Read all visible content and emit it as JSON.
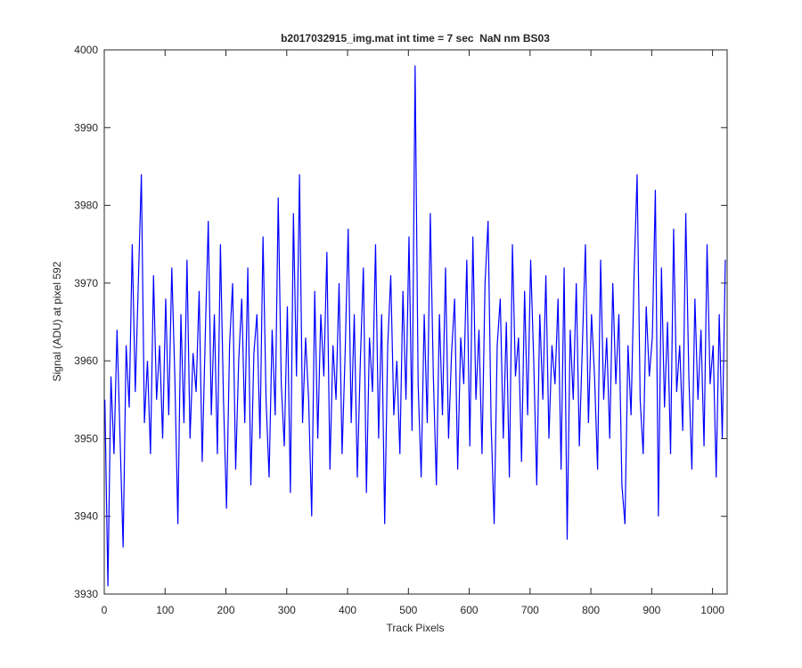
{
  "chart_data": {
    "type": "line",
    "title": "b2017032915_img.mat int time = 7 sec  NaN nm BS03",
    "x_label": "Track Pixels",
    "y_label": "Signal (ADU) at pixel 592",
    "xlim": [
      0,
      1024
    ],
    "xticks": [
      0,
      100,
      200,
      300,
      400,
      500,
      600,
      700,
      800,
      900,
      1000
    ],
    "ylim": [
      3930,
      4000
    ],
    "yticks": [
      3930,
      3940,
      3950,
      3960,
      3970,
      3980,
      3990,
      4000
    ],
    "grid": false,
    "series": [
      {
        "name": "signal",
        "color": "#0000ff",
        "x": [
          1,
          6,
          11,
          16,
          21,
          26,
          31,
          36,
          41,
          46,
          51,
          56,
          61,
          66,
          71,
          76,
          81,
          86,
          91,
          96,
          101,
          106,
          111,
          116,
          121,
          126,
          131,
          136,
          141,
          146,
          151,
          156,
          161,
          166,
          171,
          176,
          181,
          186,
          191,
          196,
          201,
          206,
          211,
          216,
          221,
          226,
          231,
          236,
          241,
          246,
          251,
          256,
          261,
          266,
          271,
          276,
          281,
          286,
          291,
          296,
          301,
          306,
          311,
          316,
          321,
          326,
          331,
          336,
          341,
          346,
          351,
          356,
          361,
          366,
          371,
          376,
          381,
          386,
          391,
          396,
          401,
          406,
          411,
          416,
          421,
          426,
          431,
          436,
          441,
          446,
          451,
          456,
          461,
          466,
          471,
          476,
          481,
          486,
          491,
          496,
          501,
          506,
          511,
          516,
          521,
          526,
          531,
          536,
          541,
          546,
          551,
          556,
          561,
          566,
          571,
          576,
          581,
          586,
          591,
          596,
          601,
          606,
          611,
          616,
          621,
          626,
          631,
          636,
          641,
          646,
          651,
          656,
          661,
          666,
          671,
          676,
          681,
          686,
          691,
          696,
          701,
          706,
          711,
          716,
          721,
          726,
          731,
          736,
          741,
          746,
          751,
          756,
          761,
          766,
          771,
          776,
          781,
          786,
          791,
          796,
          801,
          806,
          811,
          816,
          821,
          826,
          831,
          836,
          841,
          846,
          851,
          856,
          861,
          866,
          871,
          876,
          881,
          886,
          891,
          896,
          901,
          906,
          911,
          916,
          921,
          926,
          931,
          936,
          941,
          946,
          951,
          956,
          961,
          966,
          971,
          976,
          981,
          986,
          991,
          996,
          1001,
          1006,
          1011,
          1016,
          1021
        ],
        "values": [
          3955,
          3931,
          3958,
          3948,
          3964,
          3950,
          3936,
          3962,
          3954,
          3975,
          3956,
          3970,
          3984,
          3952,
          3960,
          3948,
          3971,
          3955,
          3962,
          3950,
          3968,
          3953,
          3972,
          3958,
          3939,
          3966,
          3952,
          3973,
          3950,
          3961,
          3956,
          3969,
          3947,
          3963,
          3978,
          3953,
          3966,
          3948,
          3975,
          3955,
          3941,
          3962,
          3970,
          3946,
          3960,
          3968,
          3952,
          3972,
          3944,
          3961,
          3966,
          3950,
          3976,
          3955,
          3945,
          3964,
          3953,
          3981,
          3957,
          3949,
          3967,
          3943,
          3979,
          3958,
          3984,
          3952,
          3963,
          3955,
          3940,
          3969,
          3950,
          3966,
          3958,
          3974,
          3946,
          3962,
          3955,
          3970,
          3948,
          3961,
          3977,
          3952,
          3966,
          3945,
          3960,
          3972,
          3943,
          3963,
          3956,
          3975,
          3950,
          3966,
          3939,
          3962,
          3971,
          3953,
          3960,
          3948,
          3969,
          3955,
          3976,
          3951,
          3998,
          3957,
          3945,
          3966,
          3952,
          3979,
          3958,
          3944,
          3966,
          3953,
          3972,
          3950,
          3961,
          3968,
          3946,
          3963,
          3957,
          3973,
          3949,
          3976,
          3955,
          3964,
          3948,
          3970,
          3978,
          3952,
          3939,
          3962,
          3968,
          3950,
          3965,
          3945,
          3975,
          3958,
          3963,
          3947,
          3969,
          3953,
          3973,
          3960,
          3944,
          3966,
          3955,
          3971,
          3950,
          3962,
          3957,
          3968,
          3946,
          3972,
          3937,
          3964,
          3955,
          3970,
          3949,
          3962,
          3975,
          3952,
          3966,
          3958,
          3946,
          3973,
          3955,
          3963,
          3950,
          3970,
          3957,
          3966,
          3944,
          3939,
          3962,
          3953,
          3971,
          3984,
          3955,
          3948,
          3967,
          3958,
          3963,
          3982,
          3940,
          3972,
          3954,
          3965,
          3948,
          3977,
          3956,
          3962,
          3951,
          3979,
          3958,
          3946,
          3968,
          3955,
          3964,
          3949,
          3975,
          3957,
          3962,
          3945,
          3966,
          3950,
          3973
        ]
      }
    ]
  }
}
